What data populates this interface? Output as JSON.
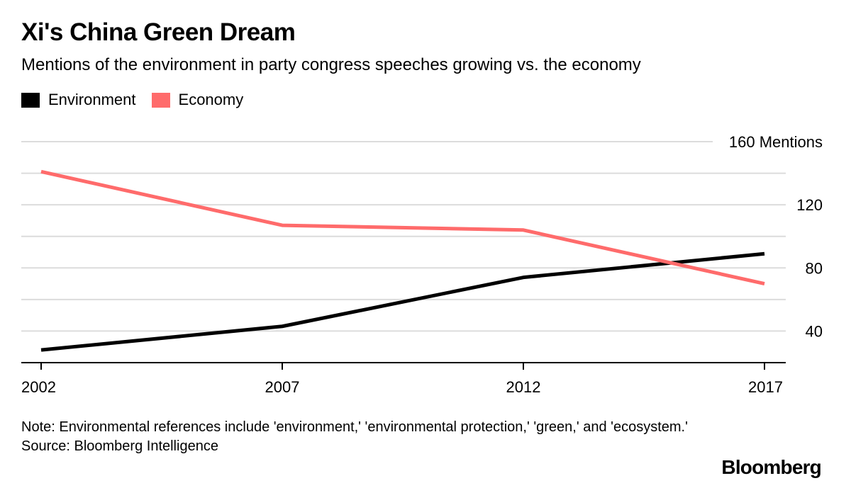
{
  "chart_data": {
    "type": "line",
    "title": "Xi's China Green Dream",
    "subtitle": "Mentions of the environment in party congress speeches growing vs. the economy",
    "x": [
      "2002",
      "2007",
      "2012",
      "2017"
    ],
    "series": [
      {
        "name": "Environment",
        "color": "#000000",
        "values": [
          28,
          43,
          74,
          89
        ]
      },
      {
        "name": "Economy",
        "color": "#ff6b6b",
        "values": [
          141,
          107,
          104,
          70
        ]
      }
    ],
    "ylim": [
      20,
      160
    ],
    "yticks": [
      40,
      80,
      120,
      160
    ],
    "ytick_labels": [
      "40",
      "80",
      "120",
      "160 Mentions"
    ],
    "grid": true,
    "legend_position": "top-left",
    "y_axis_side": "right"
  },
  "footer": {
    "note": "Note: Environmental references include 'environment,' 'environmental protection,' 'green,' and 'ecosystem.'",
    "source": "Source: Bloomberg Intelligence",
    "brand": "Bloomberg"
  }
}
